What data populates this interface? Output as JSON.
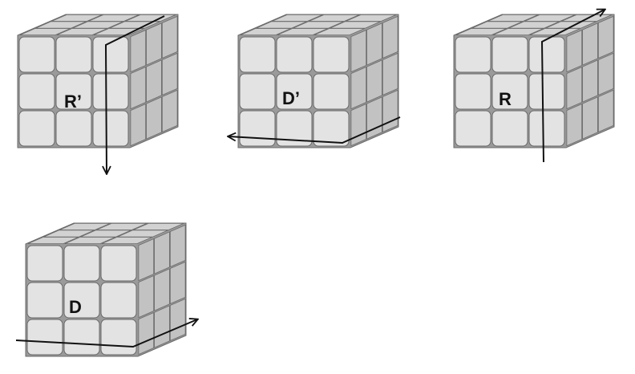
{
  "moves": [
    {
      "id": "r-prime",
      "label": "R’",
      "layer": "right",
      "direction": "down"
    },
    {
      "id": "d-prime",
      "label": "D’",
      "layer": "bottom",
      "direction": "left"
    },
    {
      "id": "r",
      "label": "R",
      "layer": "right",
      "direction": "up"
    },
    {
      "id": "d",
      "label": "D",
      "layer": "bottom",
      "direction": "right"
    }
  ],
  "colors": {
    "sticker_front": "#e3e3e3",
    "sticker_top": "#d2d2d2",
    "sticker_side": "#c2c2c2",
    "body": "#9a9a9a",
    "stroke": "#6a6a6a",
    "arrow": "#111111"
  }
}
